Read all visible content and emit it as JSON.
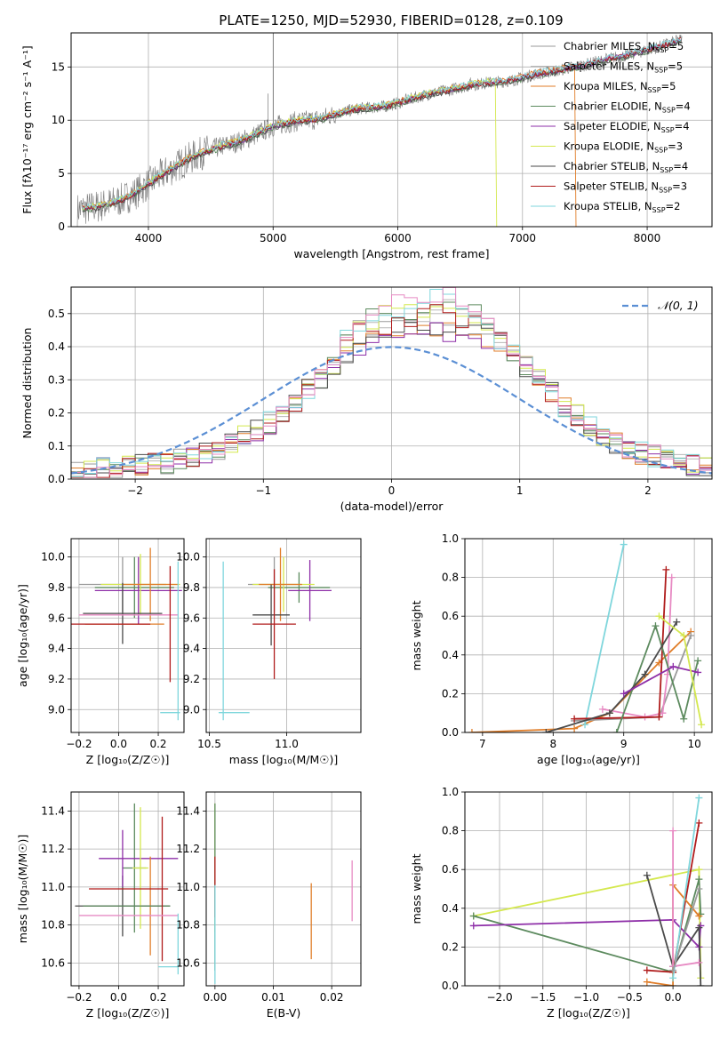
{
  "figure_title": "PLATE=1250, MJD=52930, FIBERID=0128, z=0.109",
  "chart_data": [
    {
      "id": "spectrum",
      "type": "line",
      "title": "PLATE=1250, MJD=52930, FIBERID=0128, z=0.109",
      "xlabel": "wavelength [Angstrom, rest frame]",
      "ylabel": "Flux [fλ10⁻¹⁷ erg cm⁻² s⁻¹ A⁻¹]",
      "xlim": [
        3380,
        8520
      ],
      "ylim": [
        0,
        18.2
      ],
      "xticks": [
        4000,
        5000,
        6000,
        7000,
        8000
      ],
      "yticks": [
        0,
        5,
        10,
        15
      ],
      "grid": true,
      "legend_position": "upper-right",
      "data_continuum": {
        "x": [
          3430,
          3500,
          3600,
          3700,
          3800,
          3900,
          4000,
          4100,
          4200,
          4300,
          4400,
          4500,
          4600,
          4700,
          4800,
          4900,
          5000,
          5100,
          5200,
          5300,
          5400,
          5500,
          5600,
          5700,
          5800,
          5900,
          6000,
          6100,
          6200,
          6300,
          6400,
          6500,
          6600,
          6700,
          6800,
          6900,
          7000,
          7100,
          7200,
          7300,
          7400,
          7500,
          7600,
          7700,
          7800,
          7900,
          8000,
          8100,
          8200,
          8280
        ],
        "y": [
          1.6,
          1.7,
          1.9,
          2.2,
          2.6,
          3.2,
          4.0,
          4.8,
          5.5,
          6.2,
          6.8,
          7.2,
          7.6,
          7.9,
          8.3,
          8.9,
          9.4,
          9.7,
          9.9,
          10.0,
          10.2,
          10.6,
          10.9,
          11.1,
          11.2,
          11.3,
          11.6,
          12.0,
          12.3,
          12.6,
          12.8,
          13.1,
          13.3,
          13.5,
          13.6,
          13.7,
          14.0,
          14.3,
          14.5,
          14.7,
          15.0,
          15.2,
          15.5,
          15.8,
          16.0,
          16.3,
          16.6,
          16.9,
          17.3,
          17.6
        ]
      },
      "spike_lines": [
        {
          "x": 5003,
          "y": 18.2
        },
        {
          "x": 4959,
          "y": 12.5
        },
        {
          "x": 6583,
          "y": 14.0
        },
        {
          "x": 6563,
          "y": 13.5
        }
      ],
      "dropouts": [
        {
          "name": "Kroupa ELODIE",
          "x": 6790,
          "color": "#d4e84e"
        },
        {
          "name": "Kroupa MILES",
          "x": 7420,
          "color": "#e07e2a"
        }
      ],
      "series": [
        {
          "name": "Chabrier MILES, N",
          "sub": "SSP",
          "suffix": "=5",
          "color": "#9a9a9a"
        },
        {
          "name": "Salpeter MILES, N",
          "sub": "SSP",
          "suffix": "=5",
          "color": "#b8b8b8"
        },
        {
          "name": "Kroupa MILES, N",
          "sub": "SSP",
          "suffix": "=5",
          "color": "#e07e2a"
        },
        {
          "name": "Chabrier ELODIE, N",
          "sub": "SSP",
          "suffix": "=4",
          "color": "#5c8a5e"
        },
        {
          "name": "Salpeter ELODIE, N",
          "sub": "SSP",
          "suffix": "=4",
          "color": "#8e2fa8"
        },
        {
          "name": "Kroupa ELODIE, N",
          "sub": "SSP",
          "suffix": "=3",
          "color": "#d4e84e"
        },
        {
          "name": "Chabrier STELIB, N",
          "sub": "SSP",
          "suffix": "=4",
          "color": "#4a4a4a"
        },
        {
          "name": "Salpeter STELIB, N",
          "sub": "SSP",
          "suffix": "=3",
          "color": "#b01c1c"
        },
        {
          "name": "Kroupa STELIB, N",
          "sub": "SSP",
          "suffix": "=2",
          "color": "#7fd6dc"
        }
      ]
    },
    {
      "id": "residual-histogram",
      "type": "histogram",
      "xlabel": "(data-model)/error",
      "ylabel": "Normed distribution",
      "xlim": [
        -2.5,
        2.5
      ],
      "ylim": [
        0,
        0.58
      ],
      "xticks": [
        -2,
        -1,
        0,
        1,
        2
      ],
      "yticks": [
        0.0,
        0.1,
        0.2,
        0.3,
        0.4,
        0.5
      ],
      "grid": true,
      "legend_position": "upper-right",
      "legend": [
        {
          "label": "𝒩(0, 1)",
          "style": "dashed",
          "color": "#5b8fd4"
        }
      ],
      "bin_width": 0.1,
      "bin_start": -2.5,
      "base_profile": [
        0.02,
        0.02,
        0.03,
        0.03,
        0.04,
        0.04,
        0.05,
        0.05,
        0.06,
        0.07,
        0.08,
        0.09,
        0.11,
        0.13,
        0.15,
        0.17,
        0.2,
        0.23,
        0.27,
        0.31,
        0.35,
        0.39,
        0.42,
        0.44,
        0.45,
        0.46,
        0.46,
        0.47,
        0.48,
        0.48,
        0.47,
        0.46,
        0.44,
        0.41,
        0.38,
        0.34,
        0.3,
        0.26,
        0.22,
        0.19,
        0.16,
        0.13,
        0.11,
        0.09,
        0.08,
        0.07,
        0.06,
        0.05,
        0.04,
        0.03
      ],
      "series_colors": [
        "#9a9a9a",
        "#b8b8b8",
        "#e07e2a",
        "#5c8a5e",
        "#8e2fa8",
        "#d4e84e",
        "#4a4a4a",
        "#b01c1c",
        "#7fd6dc",
        "#e78ac3"
      ]
    },
    {
      "id": "age-vs-Z",
      "type": "errorbar",
      "xlabel": "Z [log₁₀(Z/Z☉)]",
      "ylabel": "age  [log₁₀(age/yr)]",
      "xlim": [
        -0.24,
        0.33
      ],
      "ylim": [
        8.85,
        10.12
      ],
      "xticks": [
        -0.2,
        0.0,
        0.2
      ],
      "yticks": [
        9.0,
        9.2,
        9.4,
        9.6,
        9.8,
        10.0
      ],
      "grid": true,
      "points": [
        {
          "x": 0.02,
          "y": 9.82,
          "xerr": 0.22,
          "yerr": 0.18,
          "color": "#9a9a9a"
        },
        {
          "x": 0.08,
          "y": 9.8,
          "xerr": 0.2,
          "yerr": 0.2,
          "color": "#5c8a5e"
        },
        {
          "x": 0.1,
          "y": 9.78,
          "xerr": 0.22,
          "yerr": 0.22,
          "color": "#8e2fa8"
        },
        {
          "x": 0.11,
          "y": 9.82,
          "xerr": 0.2,
          "yerr": 0.2,
          "color": "#d4e84e"
        },
        {
          "x": 0.16,
          "y": 9.82,
          "xerr": 0.14,
          "yerr": 0.24,
          "color": "#e07e2a"
        },
        {
          "x": 0.02,
          "y": 9.63,
          "xerr": 0.2,
          "yerr": 0.2,
          "color": "#4a4a4a"
        },
        {
          "x": 0.05,
          "y": 9.62,
          "xerr": 0.25,
          "yerr": 0.0,
          "color": "#e78ac3"
        },
        {
          "x": 0.03,
          "y": 9.56,
          "xerr": 0.2,
          "yerr": 0.0,
          "color": "#e07e2a"
        },
        {
          "x": 0.26,
          "y": 9.56,
          "xerr": 0.0,
          "yerr": 0.38,
          "color": "#b01c1c"
        },
        {
          "x": -0.04,
          "y": 9.56,
          "xerr": 0.2,
          "yerr": 0.0,
          "color": "#b01c1c"
        },
        {
          "x": 0.3,
          "y": 9.45,
          "xerr": 0.0,
          "yerr": 0.52,
          "color": "#7fd6dc"
        },
        {
          "x": 0.26,
          "y": 8.98,
          "xerr": 0.05,
          "yerr": 0.0,
          "color": "#7fd6dc"
        }
      ]
    },
    {
      "id": "age-vs-mass",
      "type": "errorbar",
      "xlabel": "mass [log₁₀(M/M☉)]",
      "ylabel": "",
      "xlim": [
        10.48,
        11.48
      ],
      "ylim": [
        8.85,
        10.12
      ],
      "xticks": [
        10.5,
        11.0
      ],
      "yticks": [
        9.0,
        9.2,
        9.4,
        9.6,
        9.8,
        10.0
      ],
      "grid": true,
      "points": [
        {
          "x": 10.92,
          "y": 9.82,
          "xerr": 0.17,
          "yerr": 0.18,
          "color": "#9a9a9a"
        },
        {
          "x": 11.08,
          "y": 9.8,
          "xerr": 0.2,
          "yerr": 0.1,
          "color": "#5c8a5e"
        },
        {
          "x": 11.15,
          "y": 9.78,
          "xerr": 0.14,
          "yerr": 0.2,
          "color": "#8e2fa8"
        },
        {
          "x": 10.98,
          "y": 9.82,
          "xerr": 0.2,
          "yerr": 0.18,
          "color": "#d4e84e"
        },
        {
          "x": 10.96,
          "y": 9.82,
          "xerr": 0.14,
          "yerr": 0.24,
          "color": "#e07e2a"
        },
        {
          "x": 10.9,
          "y": 9.62,
          "xerr": 0.12,
          "yerr": 0.2,
          "color": "#4a4a4a"
        },
        {
          "x": 10.92,
          "y": 9.56,
          "xerr": 0.14,
          "yerr": 0.36,
          "color": "#b01c1c"
        },
        {
          "x": 10.59,
          "y": 9.45,
          "xerr": 0.0,
          "yerr": 0.52,
          "color": "#7fd6dc"
        },
        {
          "x": 10.66,
          "y": 8.98,
          "xerr": 0.1,
          "yerr": 0.0,
          "color": "#7fd6dc"
        }
      ]
    },
    {
      "id": "massweight-vs-age",
      "type": "line",
      "xlabel": "age  [log₁₀(age/yr)]",
      "ylabel": "mass weight",
      "xlim": [
        6.75,
        10.25
      ],
      "ylim": [
        0,
        1.0
      ],
      "xticks": [
        7,
        8,
        9,
        10
      ],
      "yticks": [
        0.0,
        0.2,
        0.4,
        0.6,
        0.8,
        1.0
      ],
      "grid": true,
      "series": [
        {
          "color": "#e07e2a",
          "x": [
            6.85,
            8.3,
            8.8,
            9.5,
            9.95
          ],
          "y": [
            0.0,
            0.02,
            0.1,
            0.36,
            0.52
          ]
        },
        {
          "color": "#9a9a9a",
          "x": [
            8.3,
            9.5,
            9.95
          ],
          "y": [
            0.06,
            0.08,
            0.5
          ]
        },
        {
          "color": "#e78ac3",
          "x": [
            8.7,
            9.3,
            9.55,
            9.62,
            9.68
          ],
          "y": [
            0.12,
            0.08,
            0.1,
            0.3,
            0.8
          ]
        },
        {
          "color": "#7fd6dc",
          "x": [
            8.45,
            9.0
          ],
          "y": [
            0.04,
            0.97
          ]
        },
        {
          "color": "#b01c1c",
          "x": [
            8.3,
            9.5,
            9.6
          ],
          "y": [
            0.07,
            0.08,
            0.84
          ]
        },
        {
          "color": "#5c8a5e",
          "x": [
            8.9,
            9.45,
            9.85,
            10.05
          ],
          "y": [
            0.0,
            0.55,
            0.07,
            0.37
          ]
        },
        {
          "color": "#4a4a4a",
          "x": [
            7.9,
            8.8,
            9.3,
            9.75
          ],
          "y": [
            0.0,
            0.1,
            0.3,
            0.57
          ]
        },
        {
          "color": "#8e2fa8",
          "x": [
            9.0,
            9.7,
            10.05
          ],
          "y": [
            0.2,
            0.34,
            0.31
          ]
        },
        {
          "color": "#d4e84e",
          "x": [
            9.5,
            9.85,
            10.1
          ],
          "y": [
            0.6,
            0.5,
            0.04
          ]
        }
      ]
    },
    {
      "id": "mass-vs-Z",
      "type": "errorbar",
      "xlabel": "Z [log₁₀(Z/Z☉)]",
      "ylabel": "mass [log₁₀(M/M☉)]",
      "xlim": [
        -0.24,
        0.33
      ],
      "ylim": [
        10.48,
        11.5
      ],
      "xticks": [
        -0.2,
        0.0,
        0.2
      ],
      "yticks": [
        10.6,
        10.8,
        11.0,
        11.2,
        11.4
      ],
      "grid": true,
      "points": [
        {
          "x": 0.02,
          "y": 10.9,
          "xerr": 0.24,
          "yerr": 0.16,
          "color": "#4a4a4a"
        },
        {
          "x": 0.08,
          "y": 11.1,
          "xerr": 0.06,
          "yerr": 0.34,
          "color": "#5c8a5e"
        },
        {
          "x": 0.1,
          "y": 11.15,
          "xerr": 0.2,
          "yerr": 0.0,
          "color": "#8e2fa8"
        },
        {
          "x": 0.02,
          "y": 11.15,
          "xerr": 0.0,
          "yerr": 0.15,
          "color": "#8e2fa8"
        },
        {
          "x": 0.11,
          "y": 11.1,
          "xerr": 0.04,
          "yerr": 0.32,
          "color": "#d4e84e"
        },
        {
          "x": 0.16,
          "y": 10.9,
          "xerr": 0.0,
          "yerr": 0.26,
          "color": "#e07e2a"
        },
        {
          "x": 0.04,
          "y": 10.9,
          "xerr": 0.22,
          "yerr": 0.0,
          "color": "#5c8a5e"
        },
        {
          "x": 0.05,
          "y": 10.99,
          "xerr": 0.2,
          "yerr": 0.0,
          "color": "#b01c1c"
        },
        {
          "x": 0.22,
          "y": 10.99,
          "xerr": 0.0,
          "yerr": 0.38,
          "color": "#b01c1c"
        },
        {
          "x": 0.05,
          "y": 10.85,
          "xerr": 0.25,
          "yerr": 0.0,
          "color": "#e78ac3"
        },
        {
          "x": 0.3,
          "y": 10.7,
          "xerr": 0.0,
          "yerr": 0.16,
          "color": "#7fd6dc"
        },
        {
          "x": 0.25,
          "y": 10.58,
          "xerr": 0.05,
          "yerr": 0.0,
          "color": "#7fd6dc"
        }
      ]
    },
    {
      "id": "mass-vs-EBV",
      "type": "errorbar",
      "xlabel": "E(B-V)",
      "ylabel": "",
      "xlim": [
        -0.0015,
        0.025
      ],
      "ylim": [
        10.48,
        11.5
      ],
      "xticks": [
        0.0,
        0.01,
        0.02
      ],
      "yticks": [
        10.6,
        10.8,
        11.0,
        11.2,
        11.4
      ],
      "grid": true,
      "points": [
        {
          "x": 0.0,
          "y": 11.1,
          "xerr": 0.0,
          "yerr": 0.34,
          "color": "#d4e84e"
        },
        {
          "x": 0.0,
          "y": 11.0,
          "xerr": 0.0,
          "yerr": 0.44,
          "color": "#5c8a5e"
        },
        {
          "x": 0.0,
          "y": 11.0,
          "xerr": 0.0,
          "yerr": 0.16,
          "color": "#b01c1c"
        },
        {
          "x": 0.0,
          "y": 10.75,
          "xerr": 0.0,
          "yerr": 0.26,
          "color": "#7fd6dc"
        },
        {
          "x": 0.0165,
          "y": 10.82,
          "xerr": 0.0,
          "yerr": 0.2,
          "color": "#e07e2a"
        },
        {
          "x": 0.0235,
          "y": 10.98,
          "xerr": 0.0,
          "yerr": 0.16,
          "color": "#e78ac3"
        }
      ]
    },
    {
      "id": "massweight-vs-Z",
      "type": "line",
      "xlabel": "Z [log₁₀(Z/Z☉)]",
      "ylabel": "mass weight",
      "xlim": [
        -2.4,
        0.45
      ],
      "ylim": [
        0,
        1.0
      ],
      "xticks": [
        -2.0,
        -1.5,
        -1.0,
        -0.5,
        0.0
      ],
      "xtick_labels": [
        "−2.0",
        "−1.5",
        "−1.0",
        "−0.5",
        "0.0"
      ],
      "yticks": [
        0.0,
        0.2,
        0.4,
        0.6,
        0.8,
        1.0
      ],
      "grid": true,
      "series": [
        {
          "color": "#d4e84e",
          "x": [
            -2.3,
            0.3,
            0.32
          ],
          "y": [
            0.36,
            0.6,
            0.04
          ]
        },
        {
          "color": "#5c8a5e",
          "x": [
            -2.3,
            0.0,
            0.3,
            0.32
          ],
          "y": [
            0.36,
            0.07,
            0.55,
            0.37
          ]
        },
        {
          "color": "#8e2fa8",
          "x": [
            -2.3,
            0.0,
            0.3,
            0.32
          ],
          "y": [
            0.31,
            0.34,
            0.2,
            0.31
          ]
        },
        {
          "color": "#4a4a4a",
          "x": [
            -0.3,
            0.0,
            0.3,
            0.32
          ],
          "y": [
            0.57,
            0.1,
            0.3,
            0.0
          ]
        },
        {
          "color": "#b01c1c",
          "x": [
            -0.3,
            0.0,
            0.3
          ],
          "y": [
            0.08,
            0.07,
            0.84
          ]
        },
        {
          "color": "#e07e2a",
          "x": [
            -0.3,
            0.0,
            0.0,
            0.3
          ],
          "y": [
            0.02,
            0.0,
            0.52,
            0.36
          ]
        },
        {
          "color": "#e78ac3",
          "x": [
            0.0,
            0.0,
            0.3
          ],
          "y": [
            0.8,
            0.1,
            0.12
          ]
        },
        {
          "color": "#7fd6dc",
          "x": [
            0.0,
            0.3
          ],
          "y": [
            0.04,
            0.97
          ]
        },
        {
          "color": "#9a9a9a",
          "x": [
            0.0,
            0.3
          ],
          "y": [
            0.08,
            0.5
          ]
        }
      ]
    }
  ]
}
